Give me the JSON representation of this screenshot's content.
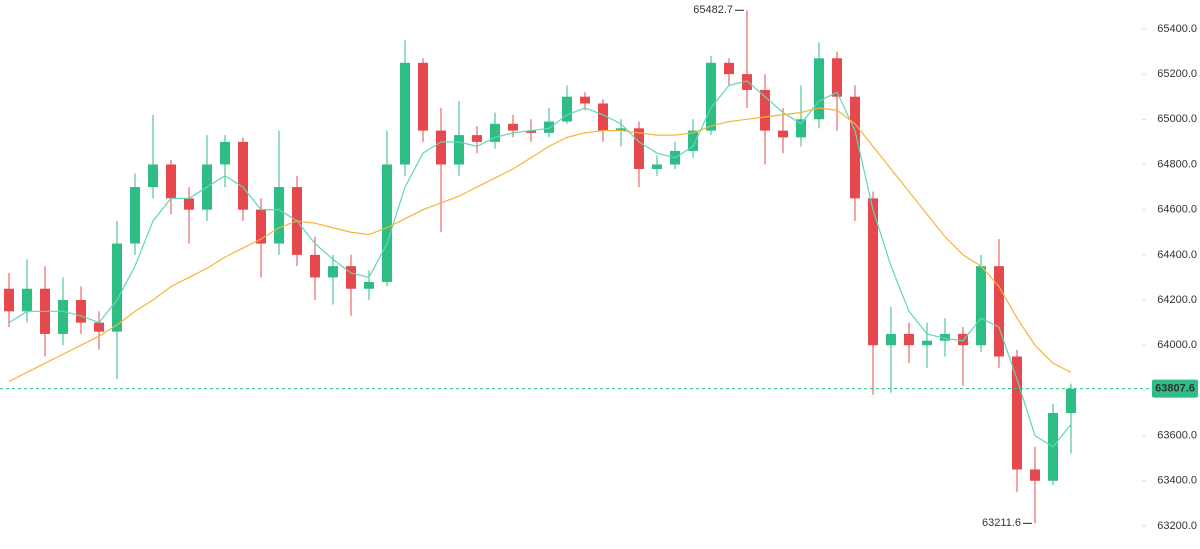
{
  "chart_data": {
    "type": "candlestick",
    "up_color": "#2ebd85",
    "down_color": "#e5484d",
    "open": [
      64250,
      64150,
      64250,
      64050,
      64200,
      64100,
      64060,
      64450,
      64700,
      64800,
      64650,
      64600,
      64800,
      64900,
      64600,
      64450,
      64700,
      64400,
      64300,
      64350,
      64250,
      64280,
      64800,
      65250,
      64950,
      64800,
      64930,
      64900,
      64980,
      64950,
      64940,
      64990,
      65100,
      65070,
      64950,
      64960,
      64780,
      64800,
      64860,
      64950,
      65250,
      65200,
      65130,
      64950,
      64920,
      65000,
      65270,
      65100,
      64650,
      64000,
      64050,
      64000,
      64020,
      64050,
      64000,
      64350,
      63950,
      63450,
      63400,
      63700
    ],
    "high": [
      64320,
      64380,
      64350,
      64300,
      64260,
      64150,
      64550,
      64760,
      65020,
      64820,
      64700,
      64930,
      64930,
      64920,
      64650,
      64950,
      64750,
      64480,
      64400,
      64400,
      64330,
      64950,
      65350,
      65270,
      65050,
      65080,
      64970,
      65030,
      65020,
      65000,
      65050,
      65150,
      65120,
      65090,
      65000,
      64990,
      64840,
      64900,
      65000,
      65280,
      65270,
      65482.7,
      65200,
      65050,
      65150,
      65340,
      65300,
      65150,
      64680,
      64170,
      64100,
      64100,
      64120,
      64080,
      64400,
      64470,
      63980,
      63550,
      63740,
      63830
    ],
    "low": [
      64080,
      64100,
      63950,
      64000,
      64050,
      63980,
      63850,
      64400,
      64650,
      64580,
      64450,
      64550,
      64700,
      64550,
      64300,
      64400,
      64350,
      64200,
      64180,
      64130,
      64200,
      64260,
      64750,
      64900,
      64500,
      64750,
      64850,
      64870,
      64920,
      64900,
      64920,
      64980,
      65040,
      64900,
      64880,
      64700,
      64750,
      64780,
      64830,
      64930,
      65150,
      65050,
      64800,
      64850,
      64880,
      64960,
      64950,
      64550,
      63780,
      63790,
      63920,
      63900,
      63950,
      63820,
      63970,
      63900,
      63350,
      63211.6,
      63380,
      63520
    ],
    "close": [
      64150,
      64250,
      64050,
      64200,
      64100,
      64060,
      64450,
      64700,
      64800,
      64650,
      64600,
      64800,
      64900,
      64600,
      64450,
      64700,
      64400,
      64300,
      64350,
      64250,
      64280,
      64800,
      65250,
      64950,
      64800,
      64930,
      64900,
      64980,
      64950,
      64940,
      64990,
      65100,
      65070,
      64950,
      64960,
      64780,
      64800,
      64860,
      64950,
      65250,
      65200,
      65130,
      64950,
      64920,
      65000,
      65270,
      65100,
      64650,
      64000,
      64050,
      64000,
      64020,
      64050,
      64000,
      64350,
      63950,
      63450,
      63400,
      63700,
      63807.6
    ],
    "moving_averages": [
      {
        "color": "#5fd6b9",
        "values": [
          64100,
          64150,
          64150,
          64150,
          64130,
          64100,
          64200,
          64350,
          64550,
          64650,
          64650,
          64700,
          64750,
          64700,
          64600,
          64600,
          64550,
          64450,
          64380,
          64320,
          64300,
          64450,
          64700,
          64850,
          64900,
          64900,
          64880,
          64920,
          64940,
          64950,
          64960,
          65020,
          65050,
          65020,
          64980,
          64900,
          64850,
          64830,
          64880,
          65050,
          65150,
          65170,
          65100,
          65030,
          64980,
          65080,
          65120,
          64950,
          64600,
          64350,
          64150,
          64050,
          64030,
          64020,
          64120,
          64080,
          63850,
          63600,
          63550,
          63650
        ]
      },
      {
        "color": "#f5b53b",
        "values": [
          63840,
          63880,
          63920,
          63960,
          64000,
          64040,
          64090,
          64150,
          64200,
          64260,
          64300,
          64340,
          64390,
          64430,
          64470,
          64520,
          64550,
          64540,
          64520,
          64500,
          64490,
          64520,
          64560,
          64600,
          64630,
          64660,
          64700,
          64740,
          64780,
          64830,
          64880,
          64920,
          64940,
          64950,
          64950,
          64940,
          64930,
          64930,
          64940,
          64970,
          64990,
          65000,
          65010,
          65020,
          65030,
          65050,
          65040,
          64980,
          64880,
          64780,
          64680,
          64580,
          64480,
          64400,
          64350,
          64260,
          64120,
          64000,
          63920,
          63880
        ]
      }
    ],
    "ylim": [
      63098,
      65528
    ],
    "yticks": [
      {
        "value": 63200,
        "label": "63200.0"
      },
      {
        "value": 63400,
        "label": "63400.0"
      },
      {
        "value": 63600,
        "label": "63600.0"
      },
      {
        "value": 63800,
        "label": "63800.0"
      },
      {
        "value": 64000,
        "label": "64000.0"
      },
      {
        "value": 64200,
        "label": "64200.0"
      },
      {
        "value": 64400,
        "label": "64400.0"
      },
      {
        "value": 64600,
        "label": "64600.0"
      },
      {
        "value": 64800,
        "label": "64800.0"
      },
      {
        "value": 65000,
        "label": "65000.0"
      },
      {
        "value": 65200,
        "label": "65200.0"
      },
      {
        "value": 65400,
        "label": "65400.0"
      }
    ]
  }
}
